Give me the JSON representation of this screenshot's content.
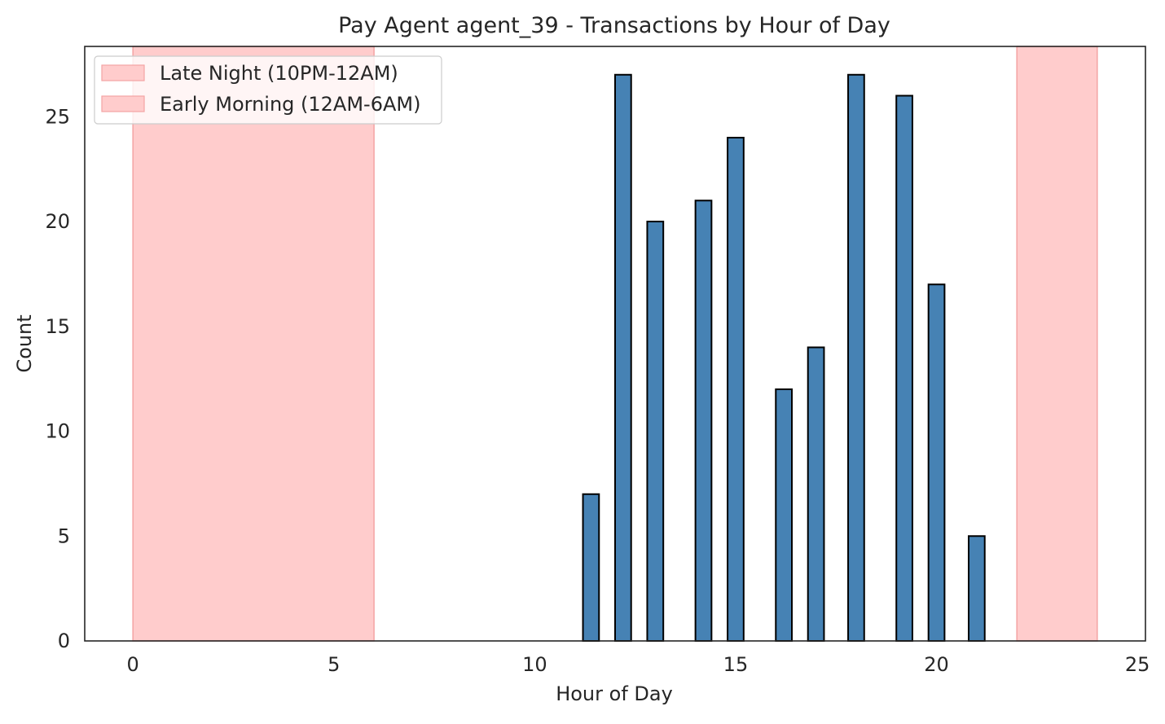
{
  "chart_data": {
    "type": "bar",
    "title": "Pay Agent agent_39 - Transactions by Hour of Day",
    "xlabel": "Hour of Day",
    "ylabel": "Count",
    "xlim": [
      -1.2,
      25.2
    ],
    "ylim": [
      0,
      28.35
    ],
    "xticks": [
      0,
      5,
      10,
      15,
      20,
      25
    ],
    "yticks": [
      0,
      5,
      10,
      15,
      20,
      25
    ],
    "grid": false,
    "bar_color": "#4682b4",
    "bar_edge_color": "#000000",
    "bar_width": 0.4,
    "series": [
      {
        "x": [
          11.2,
          12.0,
          12.8,
          14.0,
          14.8,
          16.0,
          16.8,
          17.8,
          19.0,
          19.8,
          20.8
        ],
        "values": [
          7,
          27,
          20,
          21,
          24,
          12,
          14,
          27,
          26,
          17,
          5
        ]
      }
    ],
    "shaded_regions": [
      {
        "name": "Late Night (10PM-12AM)",
        "x": [
          22,
          24
        ],
        "color": "#ffcccc",
        "edge": "#f4a3a3"
      },
      {
        "name": "Early Morning (12AM-6AM)",
        "x": [
          0,
          6
        ],
        "color": "#ffcccc",
        "edge": "#f4a3a3"
      }
    ],
    "legend": {
      "position": "top-left",
      "entries": [
        "Late Night (10PM-12AM)",
        "Early Morning (12AM-6AM)"
      ]
    }
  }
}
